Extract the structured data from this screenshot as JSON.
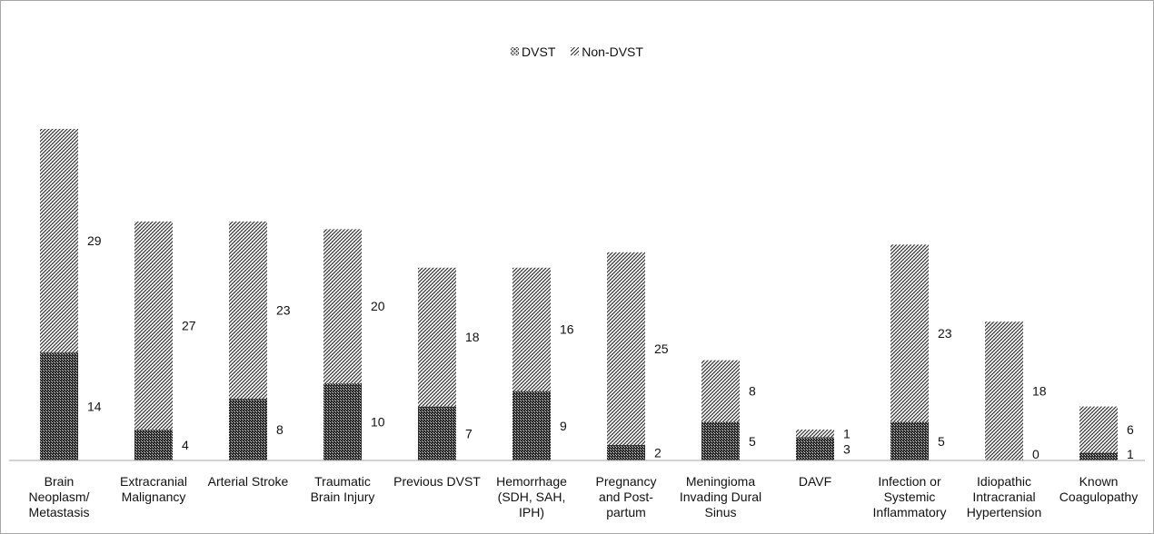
{
  "chart_data": {
    "type": "bar",
    "stacked": true,
    "categories": [
      "Brain\nNeoplasm/\nMetastasis",
      "Extracranial\nMalignancy",
      "Arterial Stroke",
      "Traumatic\nBrain Injury",
      "Previous DVST",
      "Hemorrhage\n(SDH, SAH,\nIPH)",
      "Pregnancy\nand Post-\npartum",
      "Meningioma\nInvading Dural\nSinus",
      "DAVF",
      "Infection or\nSystemic\nInflammatory",
      "Idiopathic\nIntracranial\nHypertension",
      "Known\nCoagulopathy"
    ],
    "series": [
      {
        "name": "DVST",
        "values": [
          14,
          4,
          8,
          10,
          7,
          9,
          2,
          5,
          3,
          5,
          0,
          1
        ]
      },
      {
        "name": "Non-DVST",
        "values": [
          29,
          27,
          23,
          20,
          18,
          16,
          25,
          8,
          1,
          23,
          18,
          6
        ]
      }
    ],
    "legend_position": "top",
    "grid": false,
    "ylim": [
      0,
      43
    ]
  },
  "colors": {
    "dvst_fill": "#3a3a3a",
    "non_dvst_fill": "#555555",
    "axis": "#a6a6a6",
    "border": "#a6a6a6"
  }
}
